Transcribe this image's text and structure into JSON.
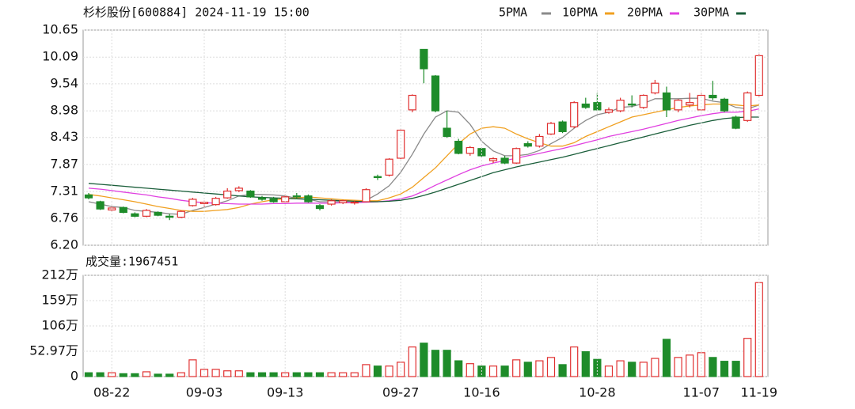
{
  "chart_data": [
    {
      "type": "candlestick",
      "title": "杉杉股份[600884] 2024-11-19 15:00",
      "up_color": "#e03030",
      "down_color": "#1e8c2a",
      "ylim": [
        6.2,
        10.65
      ],
      "yticks": [
        {
          "value": 6.2,
          "label": "6.20"
        },
        6.76,
        7.31,
        7.87,
        8.43,
        8.98,
        9.54,
        10.09,
        10.65
      ],
      "grid": true,
      "open": [
        7.24,
        7.1,
        6.93,
        6.98,
        6.85,
        6.8,
        6.88,
        6.8,
        6.78,
        7.02,
        7.06,
        7.04,
        7.18,
        7.33,
        7.32,
        7.18,
        7.16,
        7.1,
        7.22,
        7.22,
        7.02,
        7.05,
        7.08,
        7.08,
        7.1,
        7.62,
        7.65,
        8.0,
        9.0,
        10.25,
        9.7,
        8.62,
        8.35,
        8.1,
        8.2,
        7.95,
        8.0,
        7.9,
        8.3,
        8.25,
        8.5,
        8.75,
        8.65,
        9.12,
        9.15,
        8.95,
        8.98,
        9.12,
        9.05,
        9.35,
        9.35,
        9.0,
        9.1,
        9.0,
        9.3,
        9.22,
        8.85,
        8.78,
        9.3
      ],
      "high": [
        7.28,
        7.12,
        7.0,
        7.0,
        6.88,
        6.95,
        6.9,
        6.85,
        6.92,
        7.18,
        7.12,
        7.2,
        7.38,
        7.42,
        7.34,
        7.22,
        7.2,
        7.25,
        7.28,
        7.25,
        7.05,
        7.15,
        7.14,
        7.12,
        7.38,
        7.66,
        8.0,
        8.6,
        9.32,
        10.25,
        9.72,
        8.98,
        8.4,
        8.25,
        8.22,
        8.02,
        8.05,
        8.22,
        8.35,
        8.5,
        8.75,
        8.78,
        9.18,
        9.25,
        9.35,
        9.05,
        9.25,
        9.3,
        9.32,
        9.62,
        9.48,
        9.22,
        9.35,
        9.35,
        9.6,
        9.25,
        8.88,
        9.38,
        10.15
      ],
      "low": [
        7.15,
        6.93,
        6.9,
        6.86,
        6.78,
        6.78,
        6.8,
        6.72,
        6.76,
        7.0,
        7.0,
        7.02,
        7.16,
        7.3,
        7.18,
        7.12,
        7.08,
        7.08,
        7.15,
        7.08,
        6.92,
        7.02,
        7.05,
        7.04,
        7.1,
        7.55,
        7.62,
        7.98,
        8.95,
        9.55,
        8.95,
        8.42,
        8.08,
        8.05,
        8.02,
        7.9,
        7.88,
        7.88,
        8.22,
        8.22,
        8.48,
        8.52,
        8.62,
        9.02,
        8.98,
        8.92,
        8.95,
        9.05,
        9.02,
        9.32,
        8.85,
        8.95,
        9.05,
        8.98,
        9.2,
        8.95,
        8.6,
        8.75,
        9.28
      ],
      "close": [
        7.18,
        6.95,
        6.97,
        6.88,
        6.8,
        6.92,
        6.82,
        6.78,
        6.9,
        7.15,
        7.09,
        7.17,
        7.32,
        7.38,
        7.2,
        7.15,
        7.1,
        7.2,
        7.2,
        7.1,
        6.96,
        7.12,
        7.12,
        7.09,
        7.35,
        7.6,
        7.98,
        8.58,
        9.3,
        9.85,
        8.98,
        8.45,
        8.1,
        8.22,
        8.05,
        7.99,
        7.9,
        8.2,
        8.25,
        8.45,
        8.72,
        8.55,
        9.15,
        9.05,
        9.0,
        9.0,
        9.2,
        9.1,
        9.3,
        9.55,
        9.0,
        9.2,
        9.15,
        9.3,
        9.25,
        8.98,
        8.62,
        9.35,
        10.12
      ],
      "series": [
        {
          "name": "5PMA",
          "color": "#8a8a8a",
          "values": [
            7.1,
            7.05,
            7.0,
            6.98,
            6.92,
            6.9,
            6.88,
            6.85,
            6.84,
            6.92,
            6.98,
            7.05,
            7.12,
            7.22,
            7.25,
            7.25,
            7.24,
            7.22,
            7.17,
            7.15,
            7.1,
            7.1,
            7.1,
            7.08,
            7.13,
            7.26,
            7.43,
            7.71,
            8.08,
            8.5,
            8.85,
            8.98,
            8.95,
            8.7,
            8.35,
            8.15,
            8.05,
            8.05,
            8.08,
            8.16,
            8.3,
            8.43,
            8.62,
            8.78,
            8.9,
            8.95,
            9.05,
            9.07,
            9.13,
            9.23,
            9.23,
            9.23,
            9.24,
            9.24,
            9.18,
            9.15,
            9.05,
            9.02,
            9.1
          ]
        },
        {
          "name": "10PMA",
          "color": "#f0a020",
          "values": [
            7.25,
            7.22,
            7.18,
            7.14,
            7.1,
            7.05,
            7.0,
            6.96,
            6.92,
            6.9,
            6.9,
            6.92,
            6.94,
            6.98,
            7.05,
            7.1,
            7.14,
            7.16,
            7.18,
            7.2,
            7.18,
            7.16,
            7.14,
            7.13,
            7.12,
            7.12,
            7.18,
            7.26,
            7.4,
            7.6,
            7.8,
            8.05,
            8.3,
            8.5,
            8.62,
            8.65,
            8.62,
            8.5,
            8.4,
            8.32,
            8.25,
            8.25,
            8.32,
            8.45,
            8.55,
            8.65,
            8.75,
            8.85,
            8.9,
            8.95,
            9.0,
            9.05,
            9.08,
            9.1,
            9.12,
            9.12,
            9.1,
            9.08,
            9.1
          ]
        },
        {
          "name": "20PMA",
          "color": "#e040e0",
          "values": [
            7.38,
            7.36,
            7.33,
            7.3,
            7.27,
            7.24,
            7.2,
            7.17,
            7.13,
            7.1,
            7.08,
            7.07,
            7.06,
            7.05,
            7.05,
            7.05,
            7.06,
            7.06,
            7.07,
            7.07,
            7.07,
            7.07,
            7.08,
            7.08,
            7.09,
            7.1,
            7.12,
            7.16,
            7.22,
            7.32,
            7.44,
            7.55,
            7.66,
            7.76,
            7.84,
            7.9,
            7.95,
            8.0,
            8.05,
            8.1,
            8.15,
            8.2,
            8.26,
            8.32,
            8.38,
            8.45,
            8.5,
            8.55,
            8.6,
            8.66,
            8.72,
            8.78,
            8.83,
            8.88,
            8.92,
            8.95,
            8.95,
            8.97,
            9.02
          ]
        },
        {
          "name": "30PMA",
          "color": "#1a5e3a",
          "values": [
            7.48,
            7.46,
            7.44,
            7.42,
            7.4,
            7.38,
            7.36,
            7.34,
            7.32,
            7.3,
            7.28,
            7.26,
            7.24,
            7.22,
            7.2,
            7.19,
            7.18,
            7.17,
            7.16,
            7.15,
            7.14,
            7.13,
            7.12,
            7.11,
            7.1,
            7.1,
            7.11,
            7.13,
            7.17,
            7.23,
            7.3,
            7.38,
            7.46,
            7.54,
            7.62,
            7.7,
            7.76,
            7.82,
            7.87,
            7.92,
            7.97,
            8.02,
            8.08,
            8.14,
            8.2,
            8.26,
            8.32,
            8.38,
            8.44,
            8.5,
            8.56,
            8.62,
            8.68,
            8.73,
            8.78,
            8.82,
            8.84,
            8.85,
            8.85
          ]
        }
      ]
    },
    {
      "type": "bar",
      "title": "成交量:1967451",
      "ylim": [
        0,
        212
      ],
      "yticks": [
        0,
        {
          "value": 52.97,
          "label": "52.97万"
        },
        {
          "value": 106,
          "label": "106万"
        },
        {
          "value": 159,
          "label": "159万"
        },
        {
          "value": 212,
          "label": "212万"
        }
      ],
      "categories": [
        null,
        null,
        "08-22",
        null,
        null,
        null,
        null,
        null,
        null,
        null,
        "09-03",
        null,
        null,
        null,
        null,
        null,
        null,
        "09-13",
        null,
        null,
        null,
        null,
        null,
        null,
        null,
        null,
        null,
        "09-27",
        null,
        null,
        null,
        null,
        null,
        null,
        "10-16",
        null,
        null,
        null,
        null,
        null,
        null,
        null,
        null,
        null,
        "10-28",
        null,
        null,
        null,
        null,
        null,
        null,
        null,
        null,
        "11-07",
        null,
        null,
        null,
        null,
        "11-19"
      ],
      "values": [
        8,
        8,
        8,
        6,
        6,
        10,
        5,
        5,
        8,
        35,
        15,
        15,
        12,
        12,
        8,
        8,
        8,
        8,
        8,
        8,
        8,
        8,
        8,
        8,
        25,
        22,
        22,
        30,
        62,
        70,
        55,
        55,
        33,
        27,
        22,
        22,
        22,
        35,
        30,
        33,
        40,
        25,
        62,
        52,
        36,
        22,
        33,
        30,
        30,
        38,
        78,
        40,
        45,
        50,
        40,
        32,
        32,
        80,
        196.7
      ]
    }
  ]
}
